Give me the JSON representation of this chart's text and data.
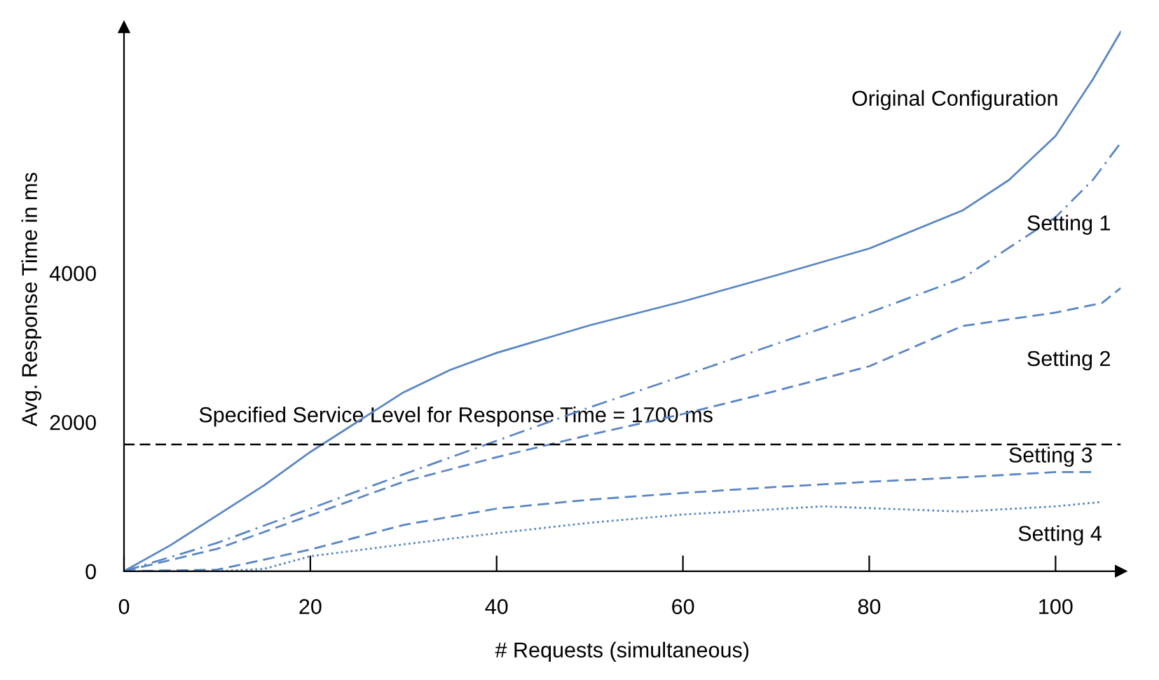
{
  "chart_data": {
    "type": "line",
    "xlabel": "# Requests (simultaneous)",
    "ylabel": "Avg. Response Time in ms",
    "xlim": [
      0,
      107
    ],
    "ylim": [
      0,
      7300
    ],
    "xticks": [
      0,
      20,
      40,
      60,
      80,
      100
    ],
    "yticks": [
      0,
      2000,
      4000
    ],
    "grid": false,
    "legend": false,
    "marker": "none",
    "series": [
      {
        "name": "Original Configuration",
        "color": "#5a86c4",
        "line_style": "solid",
        "x": [
          0,
          5,
          10,
          15,
          20,
          25,
          30,
          35,
          40,
          50,
          60,
          70,
          80,
          90,
          95,
          100,
          104,
          107
        ],
        "values": [
          0,
          350,
          750,
          1150,
          1600,
          2000,
          2400,
          2700,
          2930,
          3300,
          3620,
          3970,
          4330,
          4840,
          5250,
          5840,
          6600,
          7240
        ]
      },
      {
        "name": "Setting 1",
        "color": "#5a86c4",
        "line_style": "dashdot",
        "x": [
          0,
          10,
          20,
          30,
          40,
          50,
          60,
          70,
          80,
          90,
          100,
          104,
          107
        ],
        "values": [
          0,
          380,
          840,
          1300,
          1750,
          2200,
          2620,
          3050,
          3470,
          3930,
          4750,
          5250,
          5750
        ]
      },
      {
        "name": "Setting 2",
        "color": "#5a86c4",
        "line_style": "dashed",
        "x": [
          0,
          10,
          20,
          30,
          40,
          50,
          60,
          70,
          80,
          90,
          100,
          105,
          107
        ],
        "values": [
          0,
          300,
          750,
          1200,
          1530,
          1830,
          2110,
          2420,
          2750,
          3290,
          3470,
          3600,
          3800
        ]
      },
      {
        "name": "Setting 3",
        "color": "#5a86c4",
        "line_style": "dashed",
        "x": [
          0,
          10,
          20,
          30,
          40,
          50,
          60,
          70,
          80,
          90,
          100,
          104
        ],
        "values": [
          0,
          20,
          290,
          620,
          840,
          960,
          1050,
          1130,
          1200,
          1260,
          1330,
          1330
        ]
      },
      {
        "name": "Setting 4",
        "color": "#5a86c4",
        "line_style": "dotted",
        "x": [
          0,
          10,
          15,
          20,
          30,
          40,
          50,
          60,
          75,
          90,
          100,
          105
        ],
        "values": [
          0,
          0,
          30,
          200,
          360,
          510,
          650,
          760,
          870,
          800,
          870,
          930
        ]
      }
    ],
    "ref_lines": [
      {
        "axis": "y",
        "value": 1700,
        "label": "Specified Service Level for Response Time = 1700 ms",
        "color": "#000000",
        "line_style": "dashed"
      }
    ]
  }
}
